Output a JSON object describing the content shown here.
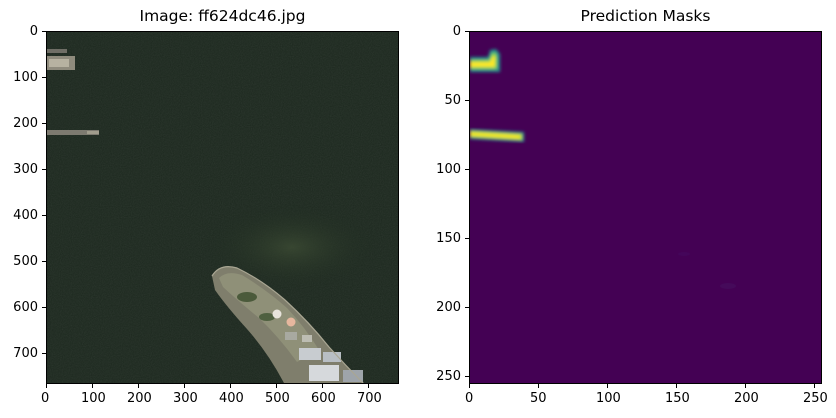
{
  "figure": {
    "left_panel": {
      "title": "Image: ff624dc46.jpg",
      "x_ticks": [
        "0",
        "100",
        "200",
        "300",
        "400",
        "500",
        "600",
        "700"
      ],
      "y_ticks": [
        "0",
        "100",
        "200",
        "300",
        "400",
        "500",
        "600",
        "700"
      ],
      "x_range": [
        0,
        768
      ],
      "y_range": [
        0,
        768
      ],
      "content": "satellite-image",
      "colors": {
        "water": "#1d2a1f",
        "land": "#8c8a78",
        "buildings": "#c8ccd0"
      }
    },
    "right_panel": {
      "title": "Prediction Masks",
      "x_ticks": [
        "0",
        "50",
        "100",
        "150",
        "200",
        "250"
      ],
      "y_ticks": [
        "0",
        "50",
        "100",
        "150",
        "200",
        "250"
      ],
      "x_range": [
        0,
        256
      ],
      "y_range": [
        0,
        256
      ],
      "content": "mask-heatmap",
      "colors": {
        "background": "#440154",
        "mask_high": "#fde725",
        "mask_mid": "#21918c"
      }
    }
  }
}
